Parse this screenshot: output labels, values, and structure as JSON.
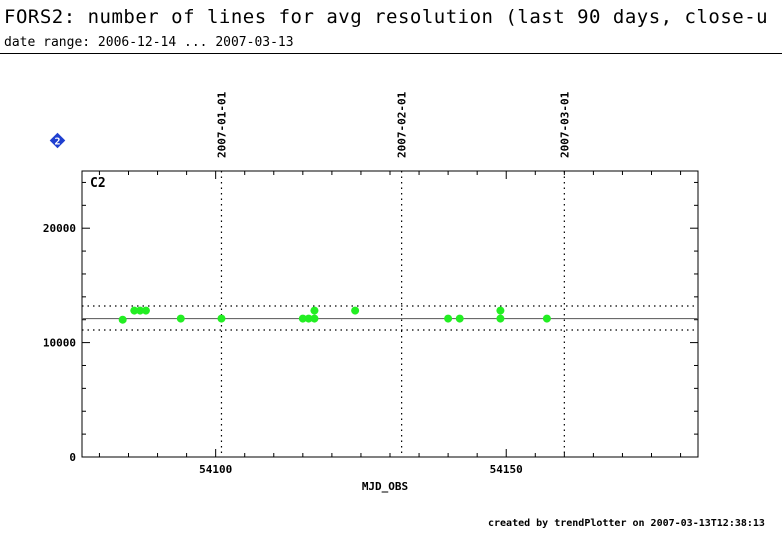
{
  "header": {
    "title": "FORS2: number of lines for avg resolution (last 90 days, close-u",
    "subtitle": "date range: 2006-12-14 ... 2007-03-13"
  },
  "footer": {
    "text": "created by trendPlotter on 2007-03-13T12:38:13"
  },
  "badge": {
    "label": "2",
    "color": "#1f3fd0"
  },
  "chart_data": {
    "type": "scatter",
    "panel_label": "C2",
    "xlabel": "MJD_OBS",
    "ylabel": "",
    "xlim": [
      54077,
      54183
    ],
    "ylim": [
      0,
      25000
    ],
    "x_ticks": [
      54100,
      54150
    ],
    "y_ticks": [
      0,
      10000,
      20000
    ],
    "point_color": "#22ee22",
    "reference_line": 12100,
    "band": [
      11100,
      13200
    ],
    "date_markers": [
      {
        "label": "2007-01-01",
        "x": 54101
      },
      {
        "label": "2007-02-01",
        "x": 54132
      },
      {
        "label": "2007-03-01",
        "x": 54160
      }
    ],
    "points": [
      {
        "x": 54084,
        "y": 12000
      },
      {
        "x": 54086,
        "y": 12800
      },
      {
        "x": 54087,
        "y": 12800
      },
      {
        "x": 54088,
        "y": 12800
      },
      {
        "x": 54094,
        "y": 12100
      },
      {
        "x": 54101,
        "y": 12100
      },
      {
        "x": 54115,
        "y": 12100
      },
      {
        "x": 54116,
        "y": 12100
      },
      {
        "x": 54117,
        "y": 12100
      },
      {
        "x": 54117,
        "y": 12800
      },
      {
        "x": 54124,
        "y": 12800
      },
      {
        "x": 54140,
        "y": 12100
      },
      {
        "x": 54142,
        "y": 12100
      },
      {
        "x": 54149,
        "y": 12100
      },
      {
        "x": 54149,
        "y": 12800
      },
      {
        "x": 54157,
        "y": 12100
      }
    ]
  }
}
